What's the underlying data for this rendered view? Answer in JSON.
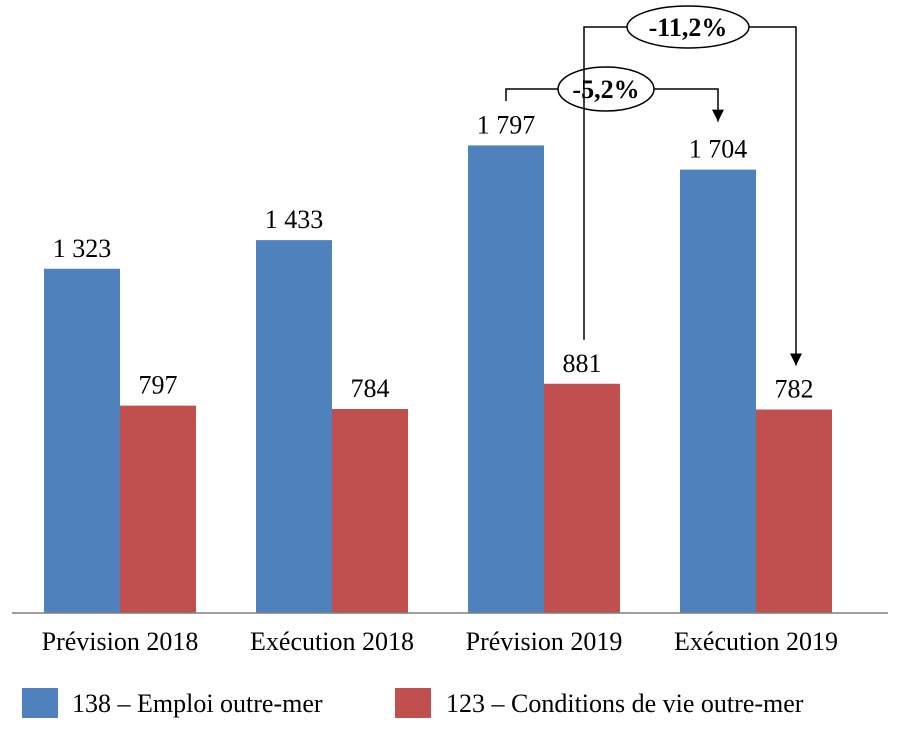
{
  "chart_data": {
    "type": "bar",
    "categories": [
      "Prévision 2018",
      "Exécution 2018",
      "Prévision 2019",
      "Exécution 2019"
    ],
    "series": [
      {
        "name": "138 – Emploi outre-mer",
        "values": [
          1323,
          1433,
          1797,
          1704
        ],
        "labels": [
          "1 323",
          "1 433",
          "1 797",
          "1 704"
        ],
        "color": "#4F81BD"
      },
      {
        "name": "123 – Conditions de vie outre-mer",
        "values": [
          797,
          784,
          881,
          782
        ],
        "labels": [
          "797",
          "784",
          "881",
          "782"
        ],
        "color": "#C0504D"
      }
    ],
    "ylim": [
      0,
      2400
    ],
    "grid": false,
    "legend_position": "bottom",
    "annotations": [
      {
        "text": "-5,2%",
        "from_category": "Prévision 2019",
        "from_series": "138 – Emploi outre-mer",
        "to_category": "Exécution 2019",
        "to_series": "138 – Emploi outre-mer"
      },
      {
        "text": "-11,2%",
        "from_category": "Prévision 2019",
        "from_series": "123 – Conditions de vie outre-mer",
        "to_category": "Exécution 2019",
        "to_series": "123 – Conditions de vie outre-mer"
      }
    ]
  }
}
